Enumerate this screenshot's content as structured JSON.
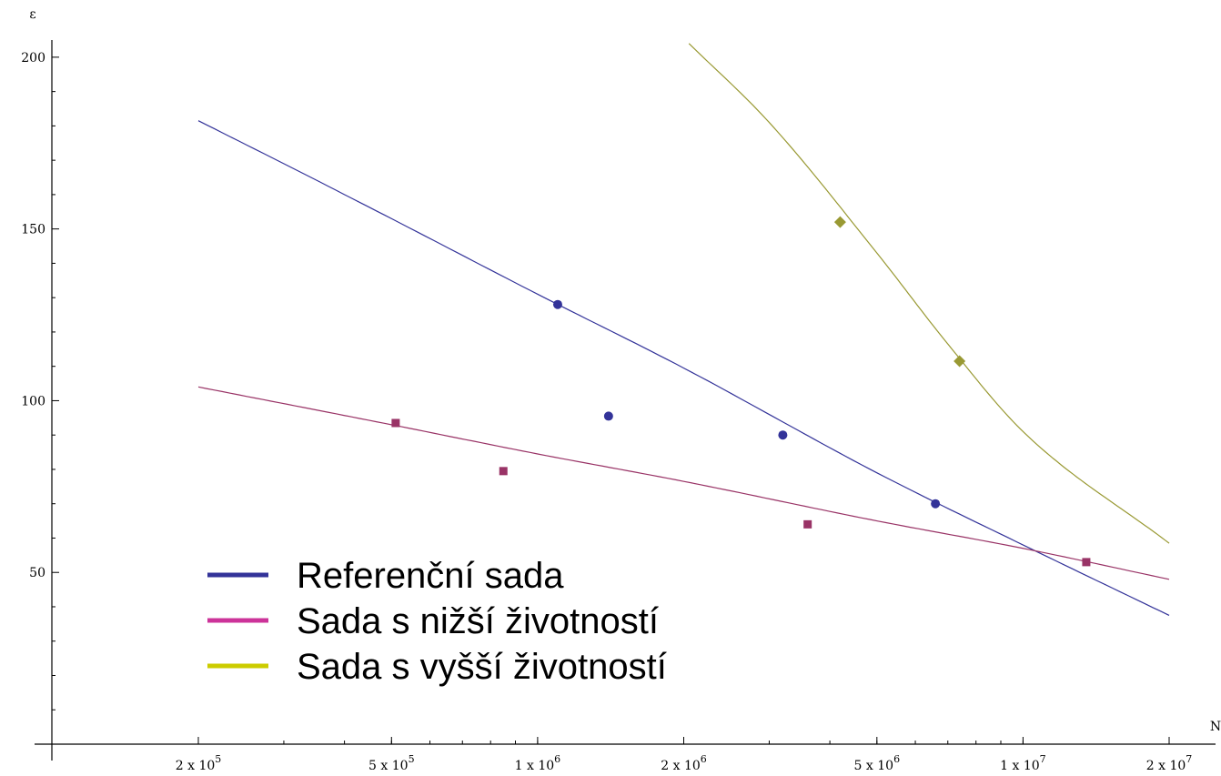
{
  "chart_data": {
    "type": "scatter",
    "xscale": "log",
    "xlabel": "N",
    "ylabel": "ε",
    "xlim": [
      200000,
      20000000
    ],
    "ylim": [
      0,
      205
    ],
    "x_ticks": [
      {
        "value": 200000,
        "label": "2 x 10^5"
      },
      {
        "value": 500000,
        "label": "5 x 10^5"
      },
      {
        "value": 1000000,
        "label": "1 x 10^6"
      },
      {
        "value": 2000000,
        "label": "2 x 10^6"
      },
      {
        "value": 5000000,
        "label": "5 x 10^6"
      },
      {
        "value": 10000000,
        "label": "1 x 10^7"
      },
      {
        "value": 20000000,
        "label": "2 x 10^7"
      }
    ],
    "y_ticks": [
      {
        "value": 50,
        "label": "50"
      },
      {
        "value": 100,
        "label": "100"
      },
      {
        "value": 150,
        "label": "150"
      },
      {
        "value": 200,
        "label": "200"
      }
    ],
    "grid": false,
    "legend": {
      "position": "bottom-left",
      "entries": [
        {
          "label": "Referenční sada",
          "color": "#333399"
        },
        {
          "label": "Sada s nižší životností",
          "color": "#cc3399"
        },
        {
          "label": "Sada s vyšší životností",
          "color": "#cccc00"
        }
      ]
    },
    "series": [
      {
        "name": "Referenční sada",
        "color": "#333399",
        "marker": "circle",
        "marker_color": "#333399",
        "points": {
          "x": [
            1100000,
            1400000,
            3200000,
            6600000
          ],
          "y": [
            128,
            95.5,
            90,
            70
          ]
        },
        "fit": {
          "x": [
            200000,
            300000,
            500000,
            1000000,
            2000000,
            5000000,
            10000000,
            20000000
          ],
          "y": [
            181.5,
            169,
            153,
            131,
            109.5,
            79,
            58,
            37.5
          ]
        }
      },
      {
        "name": "Sada s nižší životností",
        "color": "#993366",
        "marker": "square",
        "marker_color": "#993366",
        "points": {
          "x": [
            510000,
            850000,
            3600000,
            13500000
          ],
          "y": [
            93.5,
            79.5,
            64,
            53
          ]
        },
        "fit": {
          "x": [
            200000,
            500000,
            1000000,
            2000000,
            5000000,
            10000000,
            20000000
          ],
          "y": [
            104,
            93,
            84.5,
            76.5,
            65,
            57,
            48
          ]
        }
      },
      {
        "name": "Sada s vyšší životností",
        "color": "#999933",
        "marker": "diamond",
        "marker_color": "#999933",
        "points": {
          "x": [
            4200000,
            7400000
          ],
          "y": [
            152,
            111.5
          ]
        },
        "fit": {
          "x": [
            2050000,
            3000000,
            5000000,
            7000000,
            10000000,
            20000000
          ],
          "y": [
            204,
            181,
            143,
            116.5,
            91,
            58.5
          ]
        }
      }
    ]
  }
}
